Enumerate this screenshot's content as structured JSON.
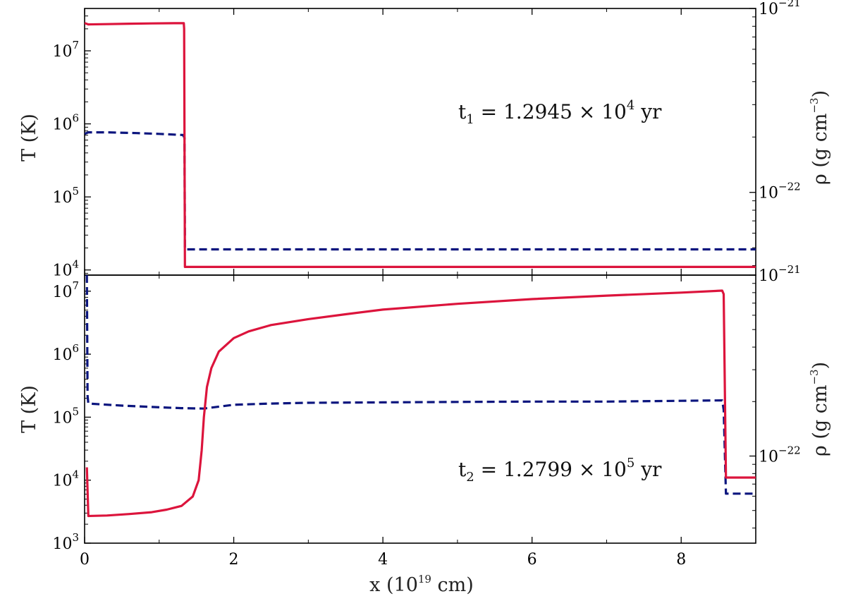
{
  "colors": {
    "temperature": "#dc143c",
    "density": "#0b157e",
    "axis": "#000000"
  },
  "chart_data": [
    {
      "type": "line",
      "panel": "top",
      "annotation": {
        "base": "t",
        "sub": "1",
        "text": " = 1.2945 × 10",
        "sup": "4",
        "unit": " yr"
      },
      "x": {
        "lim": [
          0,
          9
        ],
        "ticks": [
          0,
          2,
          4,
          6,
          8
        ],
        "label": "x (10^19 cm)"
      },
      "yleft": {
        "label": "T (K)",
        "scale": "log",
        "lim": [
          8500,
          38000000
        ],
        "ticks": [
          {
            "v": 10000,
            "text": "10",
            "sup": "4"
          },
          {
            "v": 100000,
            "text": "10",
            "sup": "5"
          },
          {
            "v": 1000000,
            "text": "10",
            "sup": "6"
          },
          {
            "v": 10000000,
            "text": "10",
            "sup": "7"
          }
        ]
      },
      "yright": {
        "label": "ρ (g cm^-3)",
        "scale": "log",
        "lim": [
          3.55e-23,
          1e-21
        ],
        "ticks": [
          {
            "v": 1e-22,
            "text": "10",
            "sup": "−22"
          },
          {
            "v": 1e-21,
            "text": "10",
            "sup": "−21"
          }
        ]
      },
      "series": [
        {
          "key": "temperature",
          "style": "solid",
          "axis": "left",
          "points": [
            [
              0,
              24000000
            ],
            [
              0.05,
              23000000
            ],
            [
              0.3,
              23200000
            ],
            [
              0.6,
              23500000
            ],
            [
              0.9,
              23700000
            ],
            [
              1.2,
              23900000
            ],
            [
              1.33,
              23900000
            ],
            [
              1.335,
              20000000
            ],
            [
              1.345,
              11000
            ],
            [
              3,
              11000
            ],
            [
              6,
              11000
            ],
            [
              9,
              11000
            ]
          ]
        },
        {
          "key": "density",
          "style": "dashed",
          "axis": "right",
          "points": [
            [
              0,
              2.08e-22
            ],
            [
              0.05,
              2.12e-22
            ],
            [
              0.3,
              2.12e-22
            ],
            [
              0.7,
              2.1e-22
            ],
            [
              1.0,
              2.08e-22
            ],
            [
              1.32,
              2.05e-22
            ],
            [
              1.34,
              1.98e-22
            ],
            [
              1.345,
              4.9e-23
            ],
            [
              3,
              4.9e-23
            ],
            [
              6,
              4.9e-23
            ],
            [
              9,
              4.9e-23
            ]
          ]
        }
      ]
    },
    {
      "type": "line",
      "panel": "bottom",
      "annotation": {
        "base": "t",
        "sub": "2",
        "text": " = 1.2799 × 10",
        "sup": "5",
        "unit": " yr"
      },
      "x": {
        "lim": [
          0,
          9
        ],
        "ticks": [
          0,
          2,
          4,
          6,
          8
        ],
        "label": "x (10^19 cm)"
      },
      "yleft": {
        "label": "T (K)",
        "scale": "log",
        "lim": [
          1000,
          18000000
        ],
        "ticks": [
          {
            "v": 1000,
            "text": "10",
            "sup": "3"
          },
          {
            "v": 10000,
            "text": "10",
            "sup": "4"
          },
          {
            "v": 100000,
            "text": "10",
            "sup": "5"
          },
          {
            "v": 1000000,
            "text": "10",
            "sup": "6"
          },
          {
            "v": 10000000,
            "text": "10",
            "sup": "7"
          }
        ]
      },
      "yright": {
        "label": "ρ (g cm^-3)",
        "scale": "log",
        "lim": [
          3.3e-23,
          1e-21
        ],
        "ticks": [
          {
            "v": 1e-22,
            "text": "10",
            "sup": "−22"
          },
          {
            "v": 1e-21,
            "text": "10",
            "sup": "−21"
          }
        ]
      },
      "series": [
        {
          "key": "temperature",
          "style": "solid",
          "axis": "left",
          "points": [
            [
              0.03,
              16000
            ],
            [
              0.05,
              2700
            ],
            [
              0.3,
              2750
            ],
            [
              0.6,
              2900
            ],
            [
              0.9,
              3100
            ],
            [
              1.1,
              3400
            ],
            [
              1.3,
              3900
            ],
            [
              1.45,
              5500
            ],
            [
              1.53,
              10000
            ],
            [
              1.57,
              30000
            ],
            [
              1.6,
              100000
            ],
            [
              1.64,
              300000
            ],
            [
              1.7,
              600000
            ],
            [
              1.8,
              1100000
            ],
            [
              2.0,
              1800000
            ],
            [
              2.2,
              2300000
            ],
            [
              2.5,
              2900000
            ],
            [
              3.0,
              3600000
            ],
            [
              3.5,
              4300000
            ],
            [
              4.0,
              5100000
            ],
            [
              5.0,
              6300000
            ],
            [
              6.0,
              7500000
            ],
            [
              7.0,
              8500000
            ],
            [
              8.0,
              9500000
            ],
            [
              8.55,
              10200000
            ],
            [
              8.57,
              9000000
            ],
            [
              8.6,
              11000
            ],
            [
              9,
              11000
            ]
          ]
        },
        {
          "key": "density",
          "style": "dashed",
          "axis": "right",
          "points": [
            [
              0.03,
              1e-21
            ],
            [
              0.04,
              2.15e-22
            ],
            [
              0.05,
              1.95e-22
            ],
            [
              0.5,
              1.9e-22
            ],
            [
              1.0,
              1.86e-22
            ],
            [
              1.3,
              1.84e-22
            ],
            [
              1.6,
              1.83e-22
            ],
            [
              2.0,
              1.92e-22
            ],
            [
              2.5,
              1.95e-22
            ],
            [
              3.0,
              1.97e-22
            ],
            [
              4.0,
              1.98e-22
            ],
            [
              5.0,
              1.99e-22
            ],
            [
              6.0,
              2e-22
            ],
            [
              7.0,
              2e-22
            ],
            [
              8.0,
              2.02e-22
            ],
            [
              8.55,
              2.03e-22
            ],
            [
              8.57,
              1.8e-22
            ],
            [
              8.6,
              6.2e-23
            ],
            [
              9,
              6.2e-23
            ]
          ]
        }
      ]
    }
  ],
  "labels": {
    "xaxis": {
      "main": "x (10",
      "sup": "19",
      "tail": " cm)"
    },
    "yleft": "T (K)",
    "yright": {
      "main": "ρ (g cm",
      "sup": "−3",
      "tail": ")"
    }
  }
}
